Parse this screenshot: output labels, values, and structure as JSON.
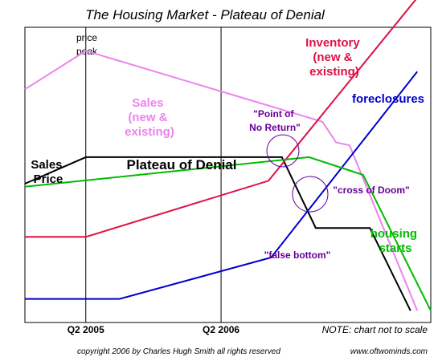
{
  "chart_data": {
    "type": "line",
    "title": "The Housing Market - Plateau of Denial",
    "x_ticks": [
      {
        "label": "Q2 2005",
        "x": 2005.25
      },
      {
        "label": "Q2  2006",
        "x": 2006.25
      }
    ],
    "vertical_marker_label": [
      "price",
      "peak"
    ],
    "xlim": [
      2004.8,
      2007.8
    ],
    "ylim": [
      0,
      100
    ],
    "series": [
      {
        "key": "sales_price",
        "label_lines": [
          "Sales",
          "Price"
        ],
        "color": "#000000",
        "points": [
          [
            2004.8,
            47
          ],
          [
            2005.25,
            56
          ],
          [
            2006.7,
            56
          ],
          [
            2006.95,
            32
          ],
          [
            2007.35,
            32
          ],
          [
            2007.65,
            4
          ]
        ]
      },
      {
        "key": "sales",
        "label_lines": [
          "Sales",
          "(new &",
          "existing)"
        ],
        "color": "#ee82ee",
        "points": [
          [
            2004.8,
            79
          ],
          [
            2005.25,
            92
          ],
          [
            2007.0,
            68
          ],
          [
            2007.1,
            61
          ],
          [
            2007.2,
            60
          ],
          [
            2007.7,
            4
          ]
        ]
      },
      {
        "key": "inventory",
        "label_lines": [
          "Inventory",
          "(new &",
          "existing)"
        ],
        "color": "#dd1144",
        "points": [
          [
            2004.8,
            29
          ],
          [
            2005.25,
            29
          ],
          [
            2006.6,
            48
          ],
          [
            2007.7,
            110
          ]
        ]
      },
      {
        "key": "foreclosures",
        "label_lines": [
          "foreclosures"
        ],
        "color": "#0000cc",
        "points": [
          [
            2004.8,
            8
          ],
          [
            2005.5,
            8
          ],
          [
            2006.62,
            22
          ],
          [
            2007.7,
            85
          ]
        ]
      },
      {
        "key": "housing_starts",
        "label_lines": [
          "housing",
          "starts"
        ],
        "color": "#00bb00",
        "points": [
          [
            2004.8,
            46
          ],
          [
            2006.9,
            56
          ],
          [
            2007.3,
            50
          ],
          [
            2007.8,
            4
          ]
        ]
      }
    ],
    "annotations": [
      {
        "key": "plateau",
        "lines": [
          "Plateau of Denial"
        ],
        "color": "#000000"
      },
      {
        "key": "point_of_no_return",
        "lines": [
          "\"Point of",
          "No Return\""
        ],
        "color": "#660099"
      },
      {
        "key": "cross_of_doom",
        "lines": [
          "\"cross of Doom\""
        ],
        "color": "#660099"
      },
      {
        "key": "false_bottom",
        "lines": [
          "\"false bottom\""
        ],
        "color": "#660099"
      }
    ],
    "note": "NOTE: chart not to scale"
  },
  "footer": {
    "copyright": "copyright 2006 by Charles Hugh Smith   all rights reserved",
    "url": "www.oftwominds.com"
  }
}
